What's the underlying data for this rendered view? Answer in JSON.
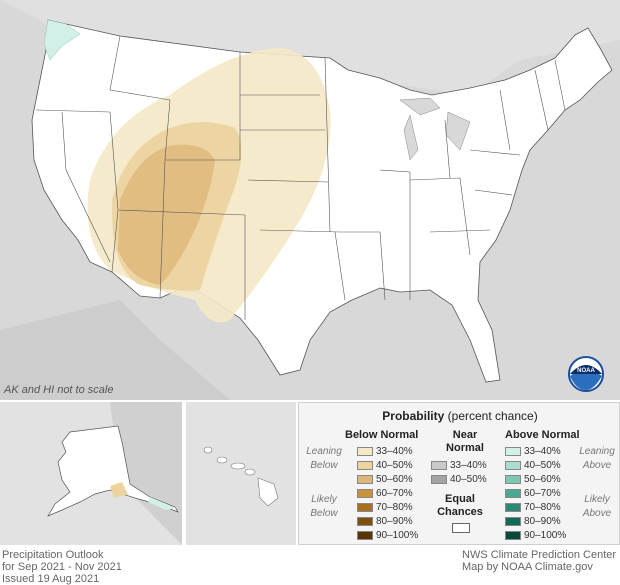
{
  "map": {
    "scale_note": "AK and HI not to scale",
    "logo_text": "NOAA",
    "colors": {
      "below_33_40": "#f5e8c8",
      "below_40_50": "#ecd3a0",
      "below_50_60": "#dcb677",
      "leaning_above_33_40": "#d2efe8",
      "state_fill": "#ffffff",
      "background": "#d8d8d8"
    }
  },
  "legend": {
    "title_bold": "Probability",
    "title_rest": " (percent chance)",
    "below_normal": {
      "heading": "Below Normal",
      "leaning": "Leaning Below",
      "likely": "Likely Below",
      "rows": [
        {
          "label": "33–40%",
          "color": "#f5e8c8"
        },
        {
          "label": "40–50%",
          "color": "#ecd3a0"
        },
        {
          "label": "50–60%",
          "color": "#dcb677"
        },
        {
          "label": "60–70%",
          "color": "#c8923f"
        },
        {
          "label": "70–80%",
          "color": "#a8701c"
        },
        {
          "label": "80–90%",
          "color": "#7f4f0e"
        },
        {
          "label": "90–100%",
          "color": "#5a3304"
        }
      ]
    },
    "near_normal": {
      "heading": "Near Normal",
      "rows": [
        {
          "label": "33–40%",
          "color": "#c9c9c9"
        },
        {
          "label": "40–50%",
          "color": "#a3a3a3"
        }
      ],
      "equal_chances": "Equal Chances"
    },
    "above_normal": {
      "heading": "Above Normal",
      "leaning": "Leaning Above",
      "likely": "Likely Above",
      "rows": [
        {
          "label": "33–40%",
          "color": "#d2efe8"
        },
        {
          "label": "40–50%",
          "color": "#a9ddd0"
        },
        {
          "label": "50–60%",
          "color": "#7cc8b7"
        },
        {
          "label": "60–70%",
          "color": "#4aa894"
        },
        {
          "label": "70–80%",
          "color": "#2a8a76"
        },
        {
          "label": "80–90%",
          "color": "#126b58"
        },
        {
          "label": "90–100%",
          "color": "#044a3b"
        }
      ]
    }
  },
  "footer": {
    "left_line1": "Precipitation Outlook",
    "left_line2": "for Sep 2021 - Nov 2021",
    "left_line3": "Issued 19 Aug 2021",
    "right_line1": "NWS Climate Prediction Center",
    "right_line2": "Map by NOAA Climate.gov"
  }
}
